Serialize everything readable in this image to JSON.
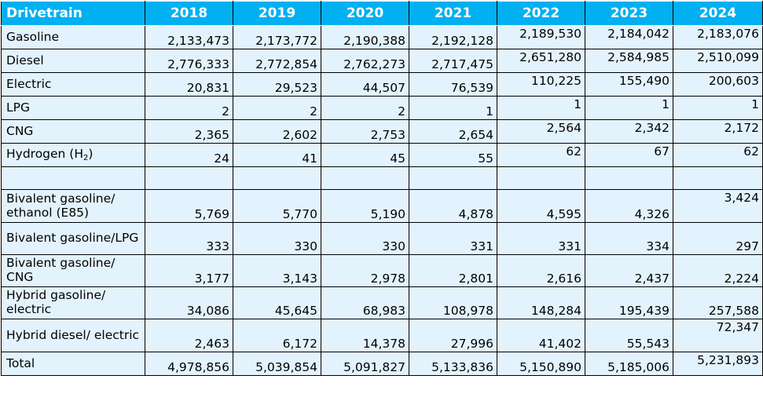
{
  "table": {
    "headers": [
      "Drivetrain",
      "2018",
      "2019",
      "2020",
      "2021",
      "2022",
      "2023",
      "2024"
    ],
    "rows": [
      {
        "label": "Gasoline",
        "values": [
          "2,133,473",
          "2,173,772",
          "2,190,388",
          "2,192,128",
          "2,189,530",
          "2,184,042",
          "2,183,076"
        ]
      },
      {
        "label": "Diesel",
        "values": [
          "2,776,333",
          "2,772,854",
          "2,762,273",
          "2,717,475",
          "2,651,280",
          "2,584,985",
          "2,510,099"
        ]
      },
      {
        "label": "Electric",
        "values": [
          "20,831",
          "29,523",
          "44,507",
          "76,539",
          "110,225",
          "155,490",
          "200,603"
        ]
      },
      {
        "label": "LPG",
        "values": [
          "2",
          "2",
          "2",
          "1",
          "1",
          "1",
          "1"
        ]
      },
      {
        "label": "CNG",
        "values": [
          "2,365",
          "2,602",
          "2,753",
          "2,654",
          "2,564",
          "2,342",
          "2,172"
        ]
      },
      {
        "label": "Hydrogen (H",
        "label_sub": "2",
        "label_after": ")",
        "values": [
          "24",
          "41",
          "45",
          "55",
          "62",
          "67",
          "62"
        ]
      },
      {
        "label": "Bivalent gasoline/ ethanol (E85)",
        "values": [
          "5,769",
          "5,770",
          "5,190",
          "4,878",
          "4,595",
          "4,326",
          "3,424"
        ]
      },
      {
        "label": "Bivalent gasoline/LPG",
        "values": [
          "333",
          "330",
          "330",
          "331",
          "331",
          "334",
          "297"
        ]
      },
      {
        "label": "Bivalent gasoline/ CNG",
        "values": [
          "3,177",
          "3,143",
          "2,978",
          "2,801",
          "2,616",
          "2,437",
          "2,224"
        ]
      },
      {
        "label": "Hybrid gasoline/ electric",
        "values": [
          "34,086",
          "45,645",
          "68,983",
          "108,978",
          "148,284",
          "195,439",
          "257,588"
        ]
      },
      {
        "label": "Hybrid diesel/ electric",
        "values": [
          "2,463",
          "6,172",
          "14,378",
          "27,996",
          "41,402",
          "55,543",
          "72,347"
        ]
      },
      {
        "label": "Total",
        "values": [
          "4,978,856",
          "5,039,854",
          "5,091,827",
          "5,133,836",
          "5,150,890",
          "5,185,006",
          "5,231,893"
        ]
      }
    ]
  },
  "colors": {
    "header_bg": "#00b0f0",
    "header_text": "#ffffff",
    "cell_bg": "#e3f3fd",
    "border": "#000000"
  }
}
